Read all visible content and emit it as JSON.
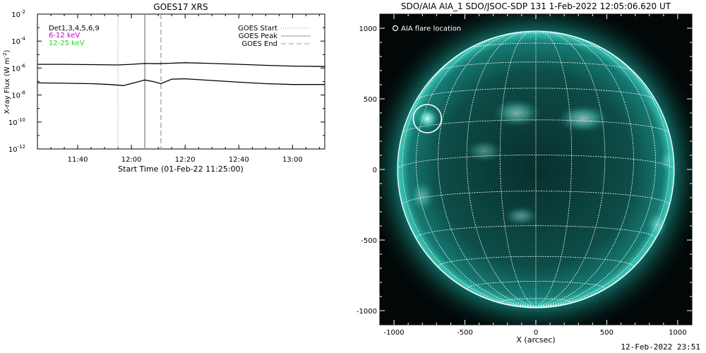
{
  "goes": {
    "chart_data": {
      "type": "line",
      "title": "GOES17 XRS",
      "xlabel": "Start Time (01-Feb-22 11:25:00)",
      "ylabel": "X-ray Flux (W m",
      "ylabel_sup": "-2",
      "ylabel_close": ")",
      "y_scale": "log",
      "ylim": [
        1e-12,
        0.01
      ],
      "xlim": [
        "11:25",
        "13:12"
      ],
      "x_ticks": [
        "11:40",
        "12:00",
        "12:20",
        "12:40",
        "13:00"
      ],
      "y_ticks": [
        {
          "base": "10",
          "exp": "-12"
        },
        {
          "base": "10",
          "exp": "-10"
        },
        {
          "base": "10",
          "exp": "-8"
        },
        {
          "base": "10",
          "exp": "-6"
        },
        {
          "base": "10",
          "exp": "-4"
        },
        {
          "base": "10",
          "exp": "-2"
        }
      ],
      "detector_legend": [
        {
          "label": "Det1,3,4,5,6,9",
          "color": "#000000"
        },
        {
          "label": "6-12 keV",
          "color": "#cc00cc"
        },
        {
          "label": "12-25 keV",
          "color": "#33cc33"
        }
      ],
      "marker_legend": [
        {
          "label": "GOES Start",
          "style": "dotted",
          "time": "11:55",
          "color": "#999999"
        },
        {
          "label": "GOES Peak",
          "style": "solid",
          "time": "12:05",
          "color": "#999999"
        },
        {
          "label": "GOES End",
          "style": "dashed",
          "time": "12:11",
          "color": "#999999"
        }
      ],
      "series": [
        {
          "color": "#000000",
          "times": [
            "11:25",
            "11:35",
            "11:45",
            "11:55",
            "12:00",
            "12:05",
            "12:10",
            "12:15",
            "12:20",
            "12:30",
            "12:40",
            "12:50",
            "13:00",
            "13:12"
          ],
          "values": [
            1.9e-06,
            1.9e-06,
            1.8e-06,
            1.7e-06,
            1.9e-06,
            2.2e-06,
            2.1e-06,
            2.3e-06,
            2.5e-06,
            2.2e-06,
            1.9e-06,
            1.6e-06,
            1.4e-06,
            1.3e-06
          ]
        },
        {
          "color": "#000000",
          "times": [
            "11:25",
            "11:35",
            "11:45",
            "11:52",
            "11:57",
            "12:02",
            "12:05",
            "12:08",
            "12:11",
            "12:15",
            "12:20",
            "12:30",
            "12:40",
            "12:50",
            "13:00",
            "13:12"
          ],
          "values": [
            8e-08,
            7.5e-08,
            7e-08,
            6e-08,
            5e-08,
            9e-08,
            1.3e-07,
            1e-07,
            7e-08,
            1.5e-07,
            1.6e-07,
            1.2e-07,
            9e-08,
            7e-08,
            6e-08,
            6e-08
          ]
        }
      ]
    }
  },
  "aia": {
    "title": "SDO/AIA AIA_1 SDO/JSOC-SDP 131  1-Feb-2022 12:05:06.620 UT",
    "legend_label": "AIA flare location",
    "chart_data": {
      "type": "image",
      "xlabel": "X (arcsec)",
      "xlim": [
        -1100,
        1100
      ],
      "ylim": [
        -1100,
        1100
      ],
      "x_ticks": [
        "-1000",
        "-500",
        "0",
        "500",
        "1000"
      ],
      "y_ticks": [
        "-1000",
        "-500",
        "0",
        "500",
        "1000"
      ],
      "solar_radius": 975,
      "flare_location": [
        -765,
        360
      ],
      "colors": {
        "disk": "#0b4f49",
        "background": "#020808",
        "grid": "#ffffff"
      }
    }
  },
  "footer": {
    "timestamp": "12-Feb-2022 23:51"
  }
}
